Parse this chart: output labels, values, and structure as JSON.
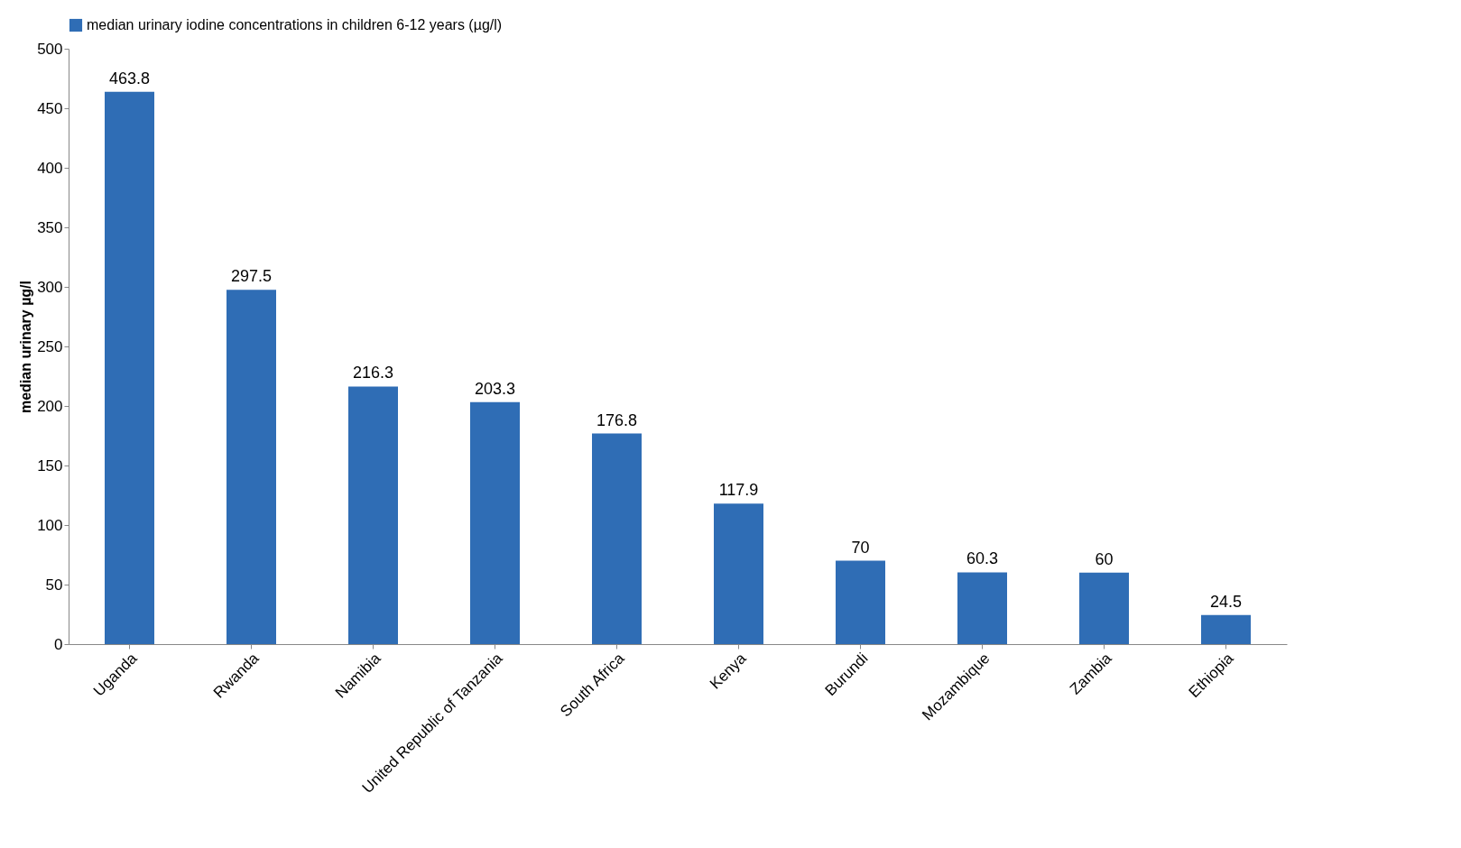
{
  "chart_data": {
    "type": "bar",
    "categories": [
      "Uganda",
      "Rwanda",
      "Namibia",
      "United Republic of Tanzania",
      "South Africa",
      "Kenya",
      "Burundi",
      "Mozambique",
      "Zambia",
      "Ethiopia"
    ],
    "series": [
      {
        "name": "median urinary iodine concentrations in children 6-12 years (µg/l)",
        "color": "#2f6db5",
        "values": [
          463.8,
          297.5,
          216.3,
          203.3,
          176.8,
          117.9,
          70,
          60.3,
          60,
          24.5
        ]
      }
    ],
    "ylabel": "median urinary µg/l",
    "ylim": [
      0,
      500
    ],
    "yticks": [
      0,
      50,
      100,
      150,
      200,
      250,
      300,
      350,
      400,
      450,
      500
    ],
    "data_labels": true,
    "grid": false,
    "legend": "top"
  }
}
